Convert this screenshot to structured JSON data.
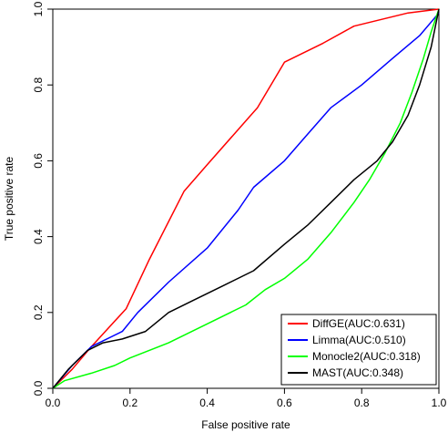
{
  "chart_data": {
    "type": "line",
    "title": "",
    "xlabel": "False positive rate",
    "ylabel": "True positive rate",
    "xlim": [
      0,
      1
    ],
    "ylim": [
      0,
      1
    ],
    "x_ticks": [
      "0.0",
      "0.2",
      "0.4",
      "0.6",
      "0.8",
      "1.0"
    ],
    "y_ticks": [
      "0.0",
      "0.2",
      "0.4",
      "0.6",
      "0.8",
      "1.0"
    ],
    "grid": false,
    "legend_position": "bottom-right",
    "series": [
      {
        "name": "DiffGE(AUC:0.631)",
        "color": "#ff0000",
        "x": [
          0,
          0.05,
          0.1,
          0.19,
          0.25,
          0.34,
          0.4,
          0.53,
          0.6,
          0.7,
          0.78,
          0.92,
          1.0
        ],
        "y": [
          0,
          0.05,
          0.11,
          0.21,
          0.34,
          0.52,
          0.59,
          0.74,
          0.86,
          0.91,
          0.955,
          0.99,
          1.0
        ]
      },
      {
        "name": "Limma(AUC:0.510)",
        "color": "#0000ff",
        "x": [
          0,
          0.05,
          0.1,
          0.18,
          0.22,
          0.3,
          0.4,
          0.48,
          0.52,
          0.6,
          0.66,
          0.72,
          0.8,
          0.88,
          0.95,
          1.0
        ],
        "y": [
          0,
          0.06,
          0.11,
          0.15,
          0.2,
          0.28,
          0.37,
          0.47,
          0.53,
          0.6,
          0.67,
          0.74,
          0.8,
          0.87,
          0.93,
          0.99
        ]
      },
      {
        "name": "Monocle2(AUC:0.318)",
        "color": "#00ff00",
        "x": [
          0,
          0.03,
          0.1,
          0.16,
          0.2,
          0.3,
          0.4,
          0.5,
          0.55,
          0.6,
          0.66,
          0.72,
          0.78,
          0.82,
          0.86,
          0.9,
          0.93,
          0.96,
          0.98,
          1.0
        ],
        "y": [
          0,
          0.02,
          0.04,
          0.06,
          0.08,
          0.12,
          0.17,
          0.22,
          0.26,
          0.29,
          0.34,
          0.41,
          0.49,
          0.55,
          0.62,
          0.7,
          0.78,
          0.87,
          0.94,
          1.0
        ]
      },
      {
        "name": "MAST(AUC:0.348)",
        "color": "#000000",
        "x": [
          0,
          0.04,
          0.09,
          0.13,
          0.18,
          0.24,
          0.3,
          0.36,
          0.44,
          0.52,
          0.6,
          0.66,
          0.72,
          0.78,
          0.84,
          0.88,
          0.92,
          0.95,
          0.98,
          1.0
        ],
        "y": [
          0,
          0.05,
          0.1,
          0.12,
          0.13,
          0.15,
          0.2,
          0.23,
          0.27,
          0.31,
          0.38,
          0.43,
          0.49,
          0.55,
          0.6,
          0.65,
          0.72,
          0.8,
          0.9,
          1.0
        ]
      }
    ]
  }
}
